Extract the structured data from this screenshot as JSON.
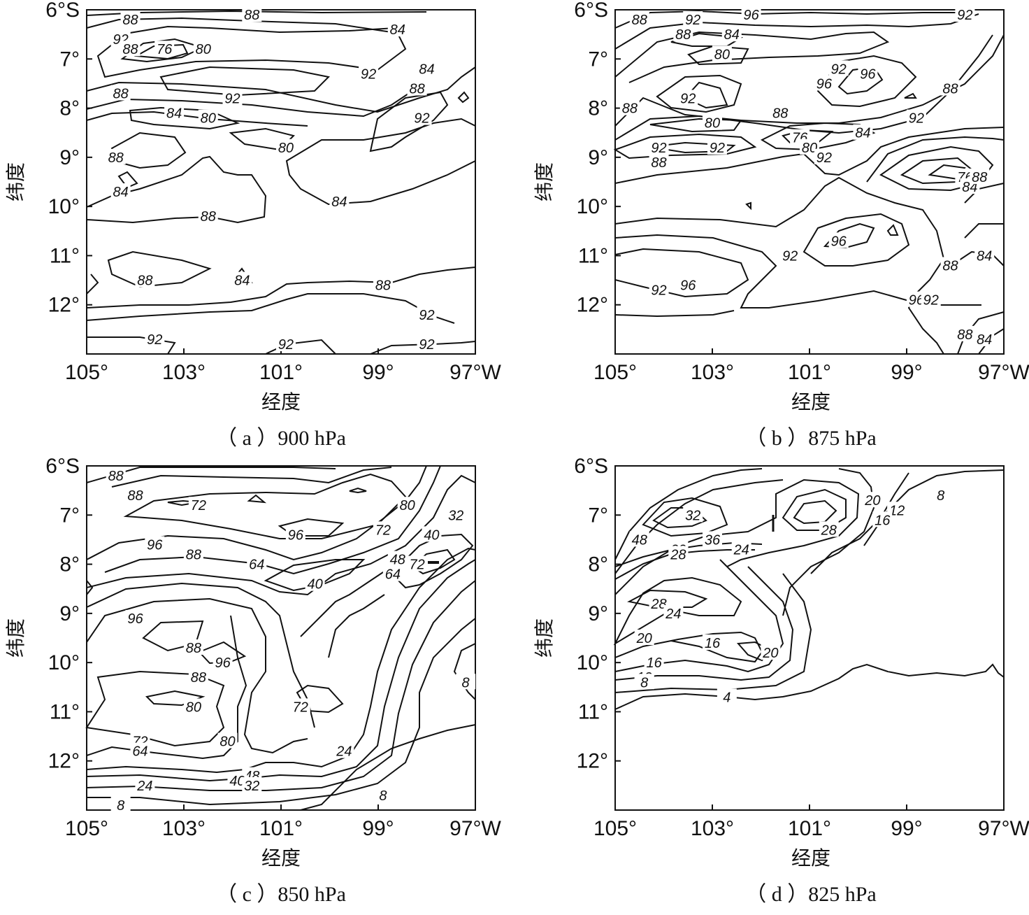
{
  "chart_data": [
    {
      "type": "contour",
      "caption": "（ a ）900 hPa",
      "xlabel": "经度",
      "ylabel": "纬度",
      "x_ticks": [
        "105°",
        "103°",
        "101°",
        "99°",
        "97°W"
      ],
      "y_ticks": [
        "6°S",
        "7°",
        "8°",
        "9°",
        "10°",
        "11°",
        "12°"
      ],
      "xlim": [
        105,
        97
      ],
      "ylim": [
        6,
        13
      ],
      "contour_labels": [
        {
          "value": "88",
          "lon": 104.1,
          "lat": 6.2
        },
        {
          "value": "88",
          "lon": 101.6,
          "lat": 6.1
        },
        {
          "value": "84",
          "lon": 98.6,
          "lat": 6.4
        },
        {
          "value": "92",
          "lon": 104.3,
          "lat": 6.6
        },
        {
          "value": "88",
          "lon": 104.1,
          "lat": 6.8
        },
        {
          "value": "76",
          "lon": 103.4,
          "lat": 6.8
        },
        {
          "value": "80",
          "lon": 102.6,
          "lat": 6.8
        },
        {
          "value": "92",
          "lon": 99.2,
          "lat": 7.3
        },
        {
          "value": "84",
          "lon": 98.0,
          "lat": 7.2
        },
        {
          "value": "88",
          "lon": 98.2,
          "lat": 7.6
        },
        {
          "value": "88",
          "lon": 104.3,
          "lat": 7.7
        },
        {
          "value": "92",
          "lon": 102.0,
          "lat": 7.8
        },
        {
          "value": "84",
          "lon": 103.2,
          "lat": 8.1
        },
        {
          "value": "92",
          "lon": 98.1,
          "lat": 8.2
        },
        {
          "value": "80",
          "lon": 102.5,
          "lat": 8.2
        },
        {
          "value": "80",
          "lon": 100.9,
          "lat": 8.8
        },
        {
          "value": "88",
          "lon": 104.4,
          "lat": 9.0
        },
        {
          "value": "84",
          "lon": 104.3,
          "lat": 9.7
        },
        {
          "value": "84",
          "lon": 99.8,
          "lat": 9.9
        },
        {
          "value": "88",
          "lon": 102.5,
          "lat": 10.2
        },
        {
          "value": "88",
          "lon": 103.8,
          "lat": 11.5
        },
        {
          "value": "84",
          "lon": 101.8,
          "lat": 11.5
        },
        {
          "value": "88",
          "lon": 98.9,
          "lat": 11.6
        },
        {
          "value": "92",
          "lon": 98.0,
          "lat": 12.2
        },
        {
          "value": "92",
          "lon": 103.6,
          "lat": 12.7
        },
        {
          "value": "92",
          "lon": 100.9,
          "lat": 12.8
        },
        {
          "value": "92",
          "lon": 98.0,
          "lat": 12.8
        }
      ]
    },
    {
      "type": "contour",
      "caption": "（ b ）875 hPa",
      "xlabel": "经度",
      "ylabel": "纬度",
      "x_ticks": [
        "105°",
        "103°",
        "101°",
        "99°",
        "97°W"
      ],
      "y_ticks": [
        "6°S",
        "7°",
        "8°",
        "9°",
        "10°",
        "11°",
        "12°"
      ],
      "xlim": [
        105,
        97
      ],
      "ylim": [
        6,
        13
      ],
      "contour_labels": [
        {
          "value": "88",
          "lon": 104.5,
          "lat": 6.2
        },
        {
          "value": "92",
          "lon": 103.4,
          "lat": 6.2
        },
        {
          "value": "96",
          "lon": 102.2,
          "lat": 6.1
        },
        {
          "value": "92",
          "lon": 97.8,
          "lat": 6.1
        },
        {
          "value": "88",
          "lon": 103.6,
          "lat": 6.5
        },
        {
          "value": "84",
          "lon": 102.6,
          "lat": 6.5
        },
        {
          "value": "80",
          "lon": 102.8,
          "lat": 6.9
        },
        {
          "value": "92",
          "lon": 100.4,
          "lat": 7.2
        },
        {
          "value": "96",
          "lon": 99.8,
          "lat": 7.3
        },
        {
          "value": "96",
          "lon": 100.7,
          "lat": 7.5
        },
        {
          "value": "92",
          "lon": 103.5,
          "lat": 7.8
        },
        {
          "value": "88",
          "lon": 98.1,
          "lat": 7.6
        },
        {
          "value": "88",
          "lon": 104.7,
          "lat": 8.0
        },
        {
          "value": "88",
          "lon": 101.6,
          "lat": 8.1
        },
        {
          "value": "80",
          "lon": 103.0,
          "lat": 8.3
        },
        {
          "value": "92",
          "lon": 98.8,
          "lat": 8.2
        },
        {
          "value": "84",
          "lon": 99.9,
          "lat": 8.5
        },
        {
          "value": "76",
          "lon": 101.2,
          "lat": 8.6
        },
        {
          "value": "80",
          "lon": 101.0,
          "lat": 8.8
        },
        {
          "value": "92",
          "lon": 104.1,
          "lat": 8.8
        },
        {
          "value": "92",
          "lon": 102.9,
          "lat": 8.8
        },
        {
          "value": "88",
          "lon": 104.1,
          "lat": 9.1
        },
        {
          "value": "92",
          "lon": 100.7,
          "lat": 9.0
        },
        {
          "value": "76",
          "lon": 97.8,
          "lat": 9.4
        },
        {
          "value": "84",
          "lon": 97.7,
          "lat": 9.6
        },
        {
          "value": "88",
          "lon": 97.5,
          "lat": 9.4
        },
        {
          "value": "96",
          "lon": 100.4,
          "lat": 10.7
        },
        {
          "value": "92",
          "lon": 101.4,
          "lat": 11.0
        },
        {
          "value": "88",
          "lon": 98.1,
          "lat": 11.2
        },
        {
          "value": "84",
          "lon": 97.4,
          "lat": 11.0
        },
        {
          "value": "92",
          "lon": 104.1,
          "lat": 11.7
        },
        {
          "value": "96",
          "lon": 103.5,
          "lat": 11.6
        },
        {
          "value": "96",
          "lon": 98.8,
          "lat": 11.9
        },
        {
          "value": "92",
          "lon": 98.5,
          "lat": 11.9
        },
        {
          "value": "88",
          "lon": 97.8,
          "lat": 12.6
        },
        {
          "value": "84",
          "lon": 97.4,
          "lat": 12.7
        }
      ]
    },
    {
      "type": "contour",
      "caption": "（ c ）850 hPa",
      "xlabel": "经度",
      "ylabel": "纬度",
      "x_ticks": [
        "105°",
        "103°",
        "101°",
        "99°",
        "97°W"
      ],
      "y_ticks": [
        "6°S",
        "7°",
        "8°",
        "9°",
        "10°",
        "11°",
        "12°"
      ],
      "xlim": [
        105,
        97
      ],
      "ylim": [
        6,
        13
      ],
      "contour_labels": [
        {
          "value": "88",
          "lon": 104.4,
          "lat": 6.2
        },
        {
          "value": "88",
          "lon": 104.0,
          "lat": 6.6
        },
        {
          "value": "72",
          "lon": 102.7,
          "lat": 6.8
        },
        {
          "value": "80",
          "lon": 98.4,
          "lat": 6.8
        },
        {
          "value": "32",
          "lon": 97.4,
          "lat": 7.0
        },
        {
          "value": "96",
          "lon": 100.7,
          "lat": 7.4
        },
        {
          "value": "72",
          "lon": 98.9,
          "lat": 7.3
        },
        {
          "value": "96",
          "lon": 103.6,
          "lat": 7.6
        },
        {
          "value": "40",
          "lon": 97.9,
          "lat": 7.4
        },
        {
          "value": "88",
          "lon": 102.8,
          "lat": 7.8
        },
        {
          "value": "48",
          "lon": 98.6,
          "lat": 7.9
        },
        {
          "value": "72",
          "lon": 98.2,
          "lat": 8.0
        },
        {
          "value": "64",
          "lon": 101.5,
          "lat": 8.0
        },
        {
          "value": "64",
          "lon": 98.7,
          "lat": 8.2
        },
        {
          "value": "40",
          "lon": 100.3,
          "lat": 8.4
        },
        {
          "value": "96",
          "lon": 104.0,
          "lat": 9.1
        },
        {
          "value": "88",
          "lon": 102.8,
          "lat": 9.7
        },
        {
          "value": "96",
          "lon": 102.2,
          "lat": 10.0
        },
        {
          "value": "88",
          "lon": 102.7,
          "lat": 10.3
        },
        {
          "value": "8",
          "lon": 97.2,
          "lat": 10.4
        },
        {
          "value": "80",
          "lon": 102.8,
          "lat": 10.9
        },
        {
          "value": "72",
          "lon": 100.6,
          "lat": 10.9
        },
        {
          "value": "80",
          "lon": 102.1,
          "lat": 11.6
        },
        {
          "value": "72",
          "lon": 103.9,
          "lat": 11.6
        },
        {
          "value": "64",
          "lon": 103.9,
          "lat": 11.8
        },
        {
          "value": "24",
          "lon": 99.7,
          "lat": 11.8
        },
        {
          "value": "48",
          "lon": 101.6,
          "lat": 12.3
        },
        {
          "value": "40",
          "lon": 101.9,
          "lat": 12.4
        },
        {
          "value": "32",
          "lon": 101.6,
          "lat": 12.5
        },
        {
          "value": "24",
          "lon": 103.8,
          "lat": 12.5
        },
        {
          "value": "8",
          "lon": 98.9,
          "lat": 12.7
        },
        {
          "value": "8",
          "lon": 104.3,
          "lat": 12.9
        }
      ]
    },
    {
      "type": "contour",
      "caption": "（ d ）825 hPa",
      "xlabel": "经度",
      "ylabel": "纬度",
      "x_ticks": [
        "105°",
        "103°",
        "101°",
        "99°",
        "97°W"
      ],
      "y_ticks": [
        "6°S",
        "7°",
        "8°",
        "9°",
        "10°",
        "11°",
        "12°"
      ],
      "xlim": [
        105,
        97
      ],
      "ylim": [
        6,
        13
      ],
      "contour_labels": [
        {
          "value": "20",
          "lon": 99.7,
          "lat": 6.7
        },
        {
          "value": "12",
          "lon": 99.2,
          "lat": 6.9
        },
        {
          "value": "8",
          "lon": 98.3,
          "lat": 6.6
        },
        {
          "value": "32",
          "lon": 103.4,
          "lat": 7.0
        },
        {
          "value": "16",
          "lon": 99.5,
          "lat": 7.1
        },
        {
          "value": "28",
          "lon": 100.6,
          "lat": 7.3
        },
        {
          "value": "48",
          "lon": 104.5,
          "lat": 7.5
        },
        {
          "value": "36",
          "lon": 103.0,
          "lat": 7.5
        },
        {
          "value": "32",
          "lon": 103.7,
          "lat": 7.7
        },
        {
          "value": "28",
          "lon": 103.7,
          "lat": 7.8
        },
        {
          "value": "24",
          "lon": 102.4,
          "lat": 7.7
        },
        {
          "value": "28",
          "lon": 104.1,
          "lat": 8.8
        },
        {
          "value": "24",
          "lon": 103.8,
          "lat": 9.0
        },
        {
          "value": "20",
          "lon": 104.4,
          "lat": 9.5
        },
        {
          "value": "16",
          "lon": 103.0,
          "lat": 9.6
        },
        {
          "value": "20",
          "lon": 101.8,
          "lat": 9.8
        },
        {
          "value": "16",
          "lon": 104.2,
          "lat": 10.0
        },
        {
          "value": "12",
          "lon": 104.4,
          "lat": 10.3
        },
        {
          "value": "8",
          "lon": 104.4,
          "lat": 10.4
        },
        {
          "value": "4",
          "lon": 102.7,
          "lat": 10.7
        }
      ]
    }
  ]
}
